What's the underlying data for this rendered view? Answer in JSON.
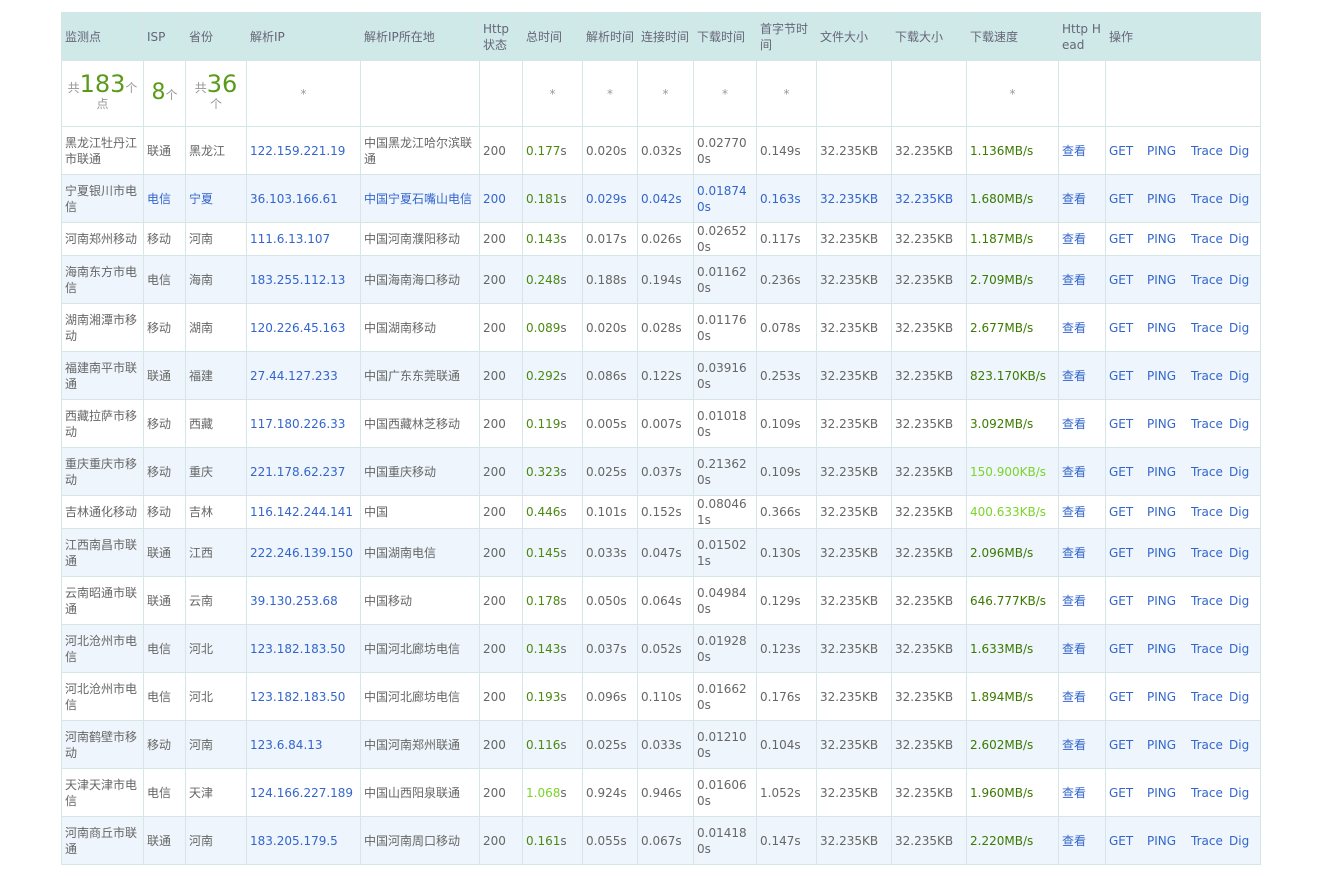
{
  "headers": [
    "监测点",
    "ISP",
    "省份",
    "解析IP",
    "解析IP所在地",
    "Http状态",
    "总时间",
    "解析时间",
    "连接时间",
    "下载时间",
    "首字节时间",
    "文件大小",
    "下载大小",
    "下载速度",
    "Http Head",
    "操作"
  ],
  "summary": {
    "points_prefix": "共",
    "points_count": "183",
    "points_unit": "个",
    "points_suffix": "点",
    "isp_count": "8",
    "isp_unit": "个",
    "prov_prefix": "共",
    "prov_count": "36",
    "prov_unit": "个",
    "star": "*"
  },
  "ops": {
    "get": "GET",
    "ping": "PING",
    "trace": "Trace",
    "dig": "Dig"
  },
  "rows": [
    {
      "node": "黑龙江牡丹江市联通",
      "isp": "联通",
      "prov": "黑龙江",
      "ip": "122.159.221.19",
      "loc": "中国黑龙江哈尔滨联通",
      "status": "200",
      "total": "0.177",
      "unit": "s",
      "dns": "0.020s",
      "conn": "0.032s",
      "dl": "0.027700s",
      "ttfb": "0.149s",
      "fsize": "32.235KB",
      "dsize": "32.235KB",
      "speed": "1.136MB/s",
      "head": "查看"
    },
    {
      "node": "宁夏银川市电信",
      "isp": "电信",
      "prov": "宁夏",
      "ip": "36.103.166.61",
      "loc": "中国宁夏石嘴山电信",
      "status": "200",
      "total": "0.181",
      "unit": "s",
      "dns": "0.029s",
      "conn": "0.042s",
      "dl": "0.018740s",
      "ttfb": "0.163s",
      "fsize": "32.235KB",
      "dsize": "32.235KB",
      "speed": "1.680MB/s",
      "head": "查看"
    },
    {
      "node": "河南郑州移动",
      "isp": "移动",
      "prov": "河南",
      "ip": "111.6.13.107",
      "loc": "中国河南濮阳移动",
      "status": "200",
      "total": "0.143",
      "unit": "s",
      "dns": "0.017s",
      "conn": "0.026s",
      "dl": "0.026520s",
      "ttfb": "0.117s",
      "fsize": "32.235KB",
      "dsize": "32.235KB",
      "speed": "1.187MB/s",
      "head": "查看"
    },
    {
      "node": "海南东方市电信",
      "isp": "电信",
      "prov": "海南",
      "ip": "183.255.112.13",
      "loc": "中国海南海口移动",
      "status": "200",
      "total": "0.248",
      "unit": "s",
      "dns": "0.188s",
      "conn": "0.194s",
      "dl": "0.011620s",
      "ttfb": "0.236s",
      "fsize": "32.235KB",
      "dsize": "32.235KB",
      "speed": "2.709MB/s",
      "head": "查看"
    },
    {
      "node": "湖南湘潭市移动",
      "isp": "移动",
      "prov": "湖南",
      "ip": "120.226.45.163",
      "loc": "中国湖南移动",
      "status": "200",
      "total": "0.089",
      "unit": "s",
      "dns": "0.020s",
      "conn": "0.028s",
      "dl": "0.011760s",
      "ttfb": "0.078s",
      "fsize": "32.235KB",
      "dsize": "32.235KB",
      "speed": "2.677MB/s",
      "head": "查看"
    },
    {
      "node": "福建南平市联通",
      "isp": "联通",
      "prov": "福建",
      "ip": "27.44.127.233",
      "loc": "中国广东东莞联通",
      "status": "200",
      "total": "0.292",
      "unit": "s",
      "dns": "0.086s",
      "conn": "0.122s",
      "dl": "0.039160s",
      "ttfb": "0.253s",
      "fsize": "32.235KB",
      "dsize": "32.235KB",
      "speed": "823.170KB/s",
      "head": "查看"
    },
    {
      "node": "西藏拉萨市移动",
      "isp": "移动",
      "prov": "西藏",
      "ip": "117.180.226.33",
      "loc": "中国西藏林芝移动",
      "status": "200",
      "total": "0.119",
      "unit": "s",
      "dns": "0.005s",
      "conn": "0.007s",
      "dl": "0.010180s",
      "ttfb": "0.109s",
      "fsize": "32.235KB",
      "dsize": "32.235KB",
      "speed": "3.092MB/s",
      "head": "查看"
    },
    {
      "node": "重庆重庆市移动",
      "isp": "移动",
      "prov": "重庆",
      "ip": "221.178.62.237",
      "loc": "中国重庆移动",
      "status": "200",
      "total": "0.323",
      "unit": "s",
      "dns": "0.025s",
      "conn": "0.037s",
      "dl": "0.213620s",
      "ttfb": "0.109s",
      "fsize": "32.235KB",
      "dsize": "32.235KB",
      "speed": "150.900KB/s",
      "head": "查看"
    },
    {
      "node": "吉林通化移动",
      "isp": "移动",
      "prov": "吉林",
      "ip": "116.142.244.141",
      "loc": "中国",
      "status": "200",
      "total": "0.446",
      "unit": "s",
      "dns": "0.101s",
      "conn": "0.152s",
      "dl": "0.080461s",
      "ttfb": "0.366s",
      "fsize": "32.235KB",
      "dsize": "32.235KB",
      "speed": "400.633KB/s",
      "head": "查看"
    },
    {
      "node": "江西南昌市联通",
      "isp": "联通",
      "prov": "江西",
      "ip": "222.246.139.150",
      "loc": "中国湖南电信",
      "status": "200",
      "total": "0.145",
      "unit": "s",
      "dns": "0.033s",
      "conn": "0.047s",
      "dl": "0.015021s",
      "ttfb": "0.130s",
      "fsize": "32.235KB",
      "dsize": "32.235KB",
      "speed": "2.096MB/s",
      "head": "查看"
    },
    {
      "node": "云南昭通市联通",
      "isp": "联通",
      "prov": "云南",
      "ip": "39.130.253.68",
      "loc": "中国移动",
      "status": "200",
      "total": "0.178",
      "unit": "s",
      "dns": "0.050s",
      "conn": "0.064s",
      "dl": "0.049840s",
      "ttfb": "0.129s",
      "fsize": "32.235KB",
      "dsize": "32.235KB",
      "speed": "646.777KB/s",
      "head": "查看"
    },
    {
      "node": "河北沧州市电信",
      "isp": "电信",
      "prov": "河北",
      "ip": "123.182.183.50",
      "loc": "中国河北廊坊电信",
      "status": "200",
      "total": "0.143",
      "unit": "s",
      "dns": "0.037s",
      "conn": "0.052s",
      "dl": "0.019280s",
      "ttfb": "0.123s",
      "fsize": "32.235KB",
      "dsize": "32.235KB",
      "speed": "1.633MB/s",
      "head": "查看"
    },
    {
      "node": "河北沧州市电信",
      "isp": "电信",
      "prov": "河北",
      "ip": "123.182.183.50",
      "loc": "中国河北廊坊电信",
      "status": "200",
      "total": "0.193",
      "unit": "s",
      "dns": "0.096s",
      "conn": "0.110s",
      "dl": "0.016620s",
      "ttfb": "0.176s",
      "fsize": "32.235KB",
      "dsize": "32.235KB",
      "speed": "1.894MB/s",
      "head": "查看"
    },
    {
      "node": "河南鹤壁市移动",
      "isp": "移动",
      "prov": "河南",
      "ip": "123.6.84.13",
      "loc": "中国河南郑州联通",
      "status": "200",
      "total": "0.116",
      "unit": "s",
      "dns": "0.025s",
      "conn": "0.033s",
      "dl": "0.012100s",
      "ttfb": "0.104s",
      "fsize": "32.235KB",
      "dsize": "32.235KB",
      "speed": "2.602MB/s",
      "head": "查看"
    },
    {
      "node": "天津天津市电信",
      "isp": "电信",
      "prov": "天津",
      "ip": "124.166.227.189",
      "loc": "中国山西阳泉联通",
      "status": "200",
      "total": "1.068",
      "unit": "s",
      "dns": "0.924s",
      "conn": "0.946s",
      "dl": "0.016060s",
      "ttfb": "1.052s",
      "fsize": "32.235KB",
      "dsize": "32.235KB",
      "speed": "1.960MB/s",
      "head": "查看"
    },
    {
      "node": "河南商丘市联通",
      "isp": "联通",
      "prov": "河南",
      "ip": "183.205.179.5",
      "loc": "中国河南周口移动",
      "status": "200",
      "total": "0.161",
      "unit": "s",
      "dns": "0.055s",
      "conn": "0.067s",
      "dl": "0.014180s",
      "ttfb": "0.147s",
      "fsize": "32.235KB",
      "dsize": "32.235KB",
      "speed": "2.220MB/s",
      "head": "查看"
    }
  ]
}
